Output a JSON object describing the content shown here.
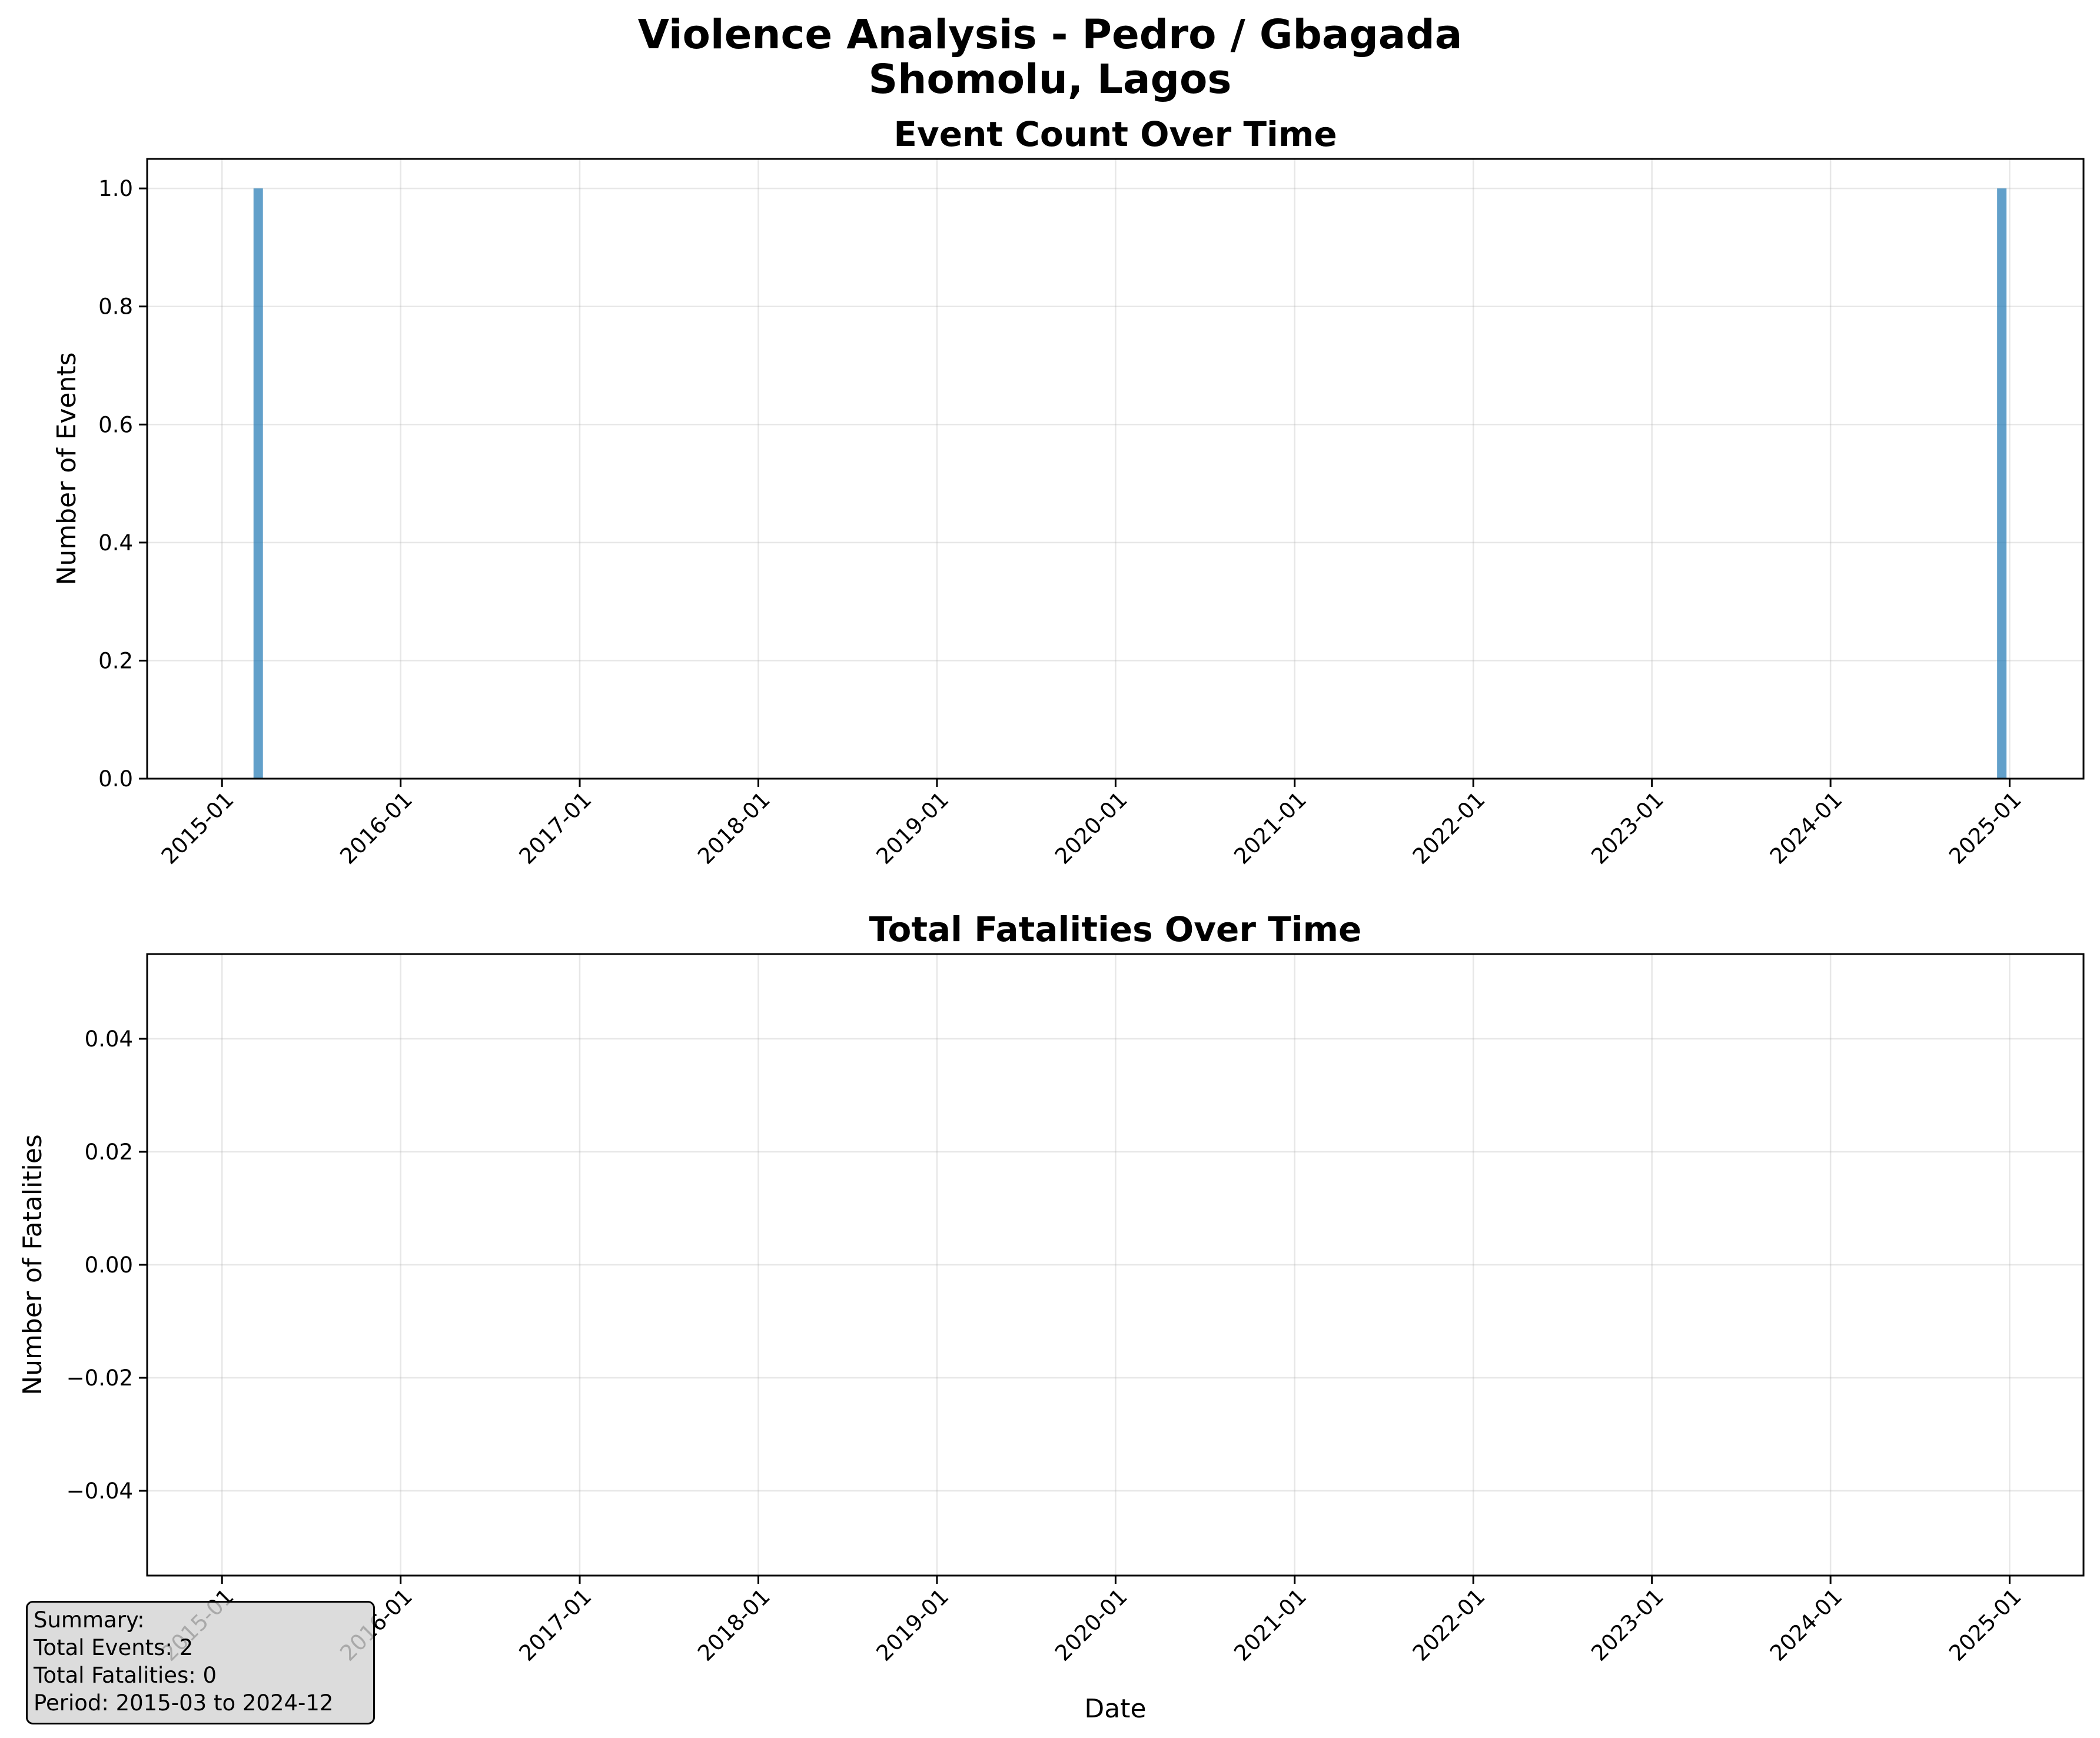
{
  "figure": {
    "title_line1": "Violence Analysis - Pedro / Gbagada",
    "title_line2": "Shomolu, Lagos"
  },
  "chart_data": [
    {
      "type": "bar",
      "title": "Event Count Over Time",
      "xlabel": "",
      "ylabel": "Number of Events",
      "x_type": "date",
      "xlim": [
        "2014-08-01",
        "2025-06-01"
      ],
      "ylim": [
        0,
        1.05
      ],
      "x_ticks": [
        "2015-01",
        "2016-01",
        "2017-01",
        "2018-01",
        "2019-01",
        "2020-01",
        "2021-01",
        "2022-01",
        "2023-01",
        "2024-01",
        "2025-01"
      ],
      "y_ticks": [
        "0.0",
        "0.2",
        "0.4",
        "0.6",
        "0.8",
        "1.0"
      ],
      "grid": true,
      "color": "#1f77b4",
      "bars": [
        {
          "date": "2015-03",
          "value": 1
        },
        {
          "date": "2024-12",
          "value": 1
        }
      ]
    },
    {
      "type": "bar",
      "title": "Total Fatalities Over Time",
      "xlabel": "Date",
      "ylabel": "Number of Fatalities",
      "x_type": "date",
      "xlim": [
        "2014-08-01",
        "2025-06-01"
      ],
      "ylim": [
        -0.055,
        0.055
      ],
      "x_ticks": [
        "2015-01",
        "2016-01",
        "2017-01",
        "2018-01",
        "2019-01",
        "2020-01",
        "2021-01",
        "2022-01",
        "2023-01",
        "2024-01",
        "2025-01"
      ],
      "y_ticks": [
        "−0.04",
        "−0.02",
        "0.00",
        "0.02",
        "0.04"
      ],
      "grid": true,
      "color": "#d62728",
      "bars": [
        {
          "date": "2015-03",
          "value": 0
        },
        {
          "date": "2024-12",
          "value": 0
        }
      ]
    }
  ],
  "summary": {
    "heading": "Summary:",
    "total_events": "Total Events: 2",
    "total_fatalities": "Total Fatalities: 0",
    "period": "Period: 2015-03 to 2024-12"
  }
}
